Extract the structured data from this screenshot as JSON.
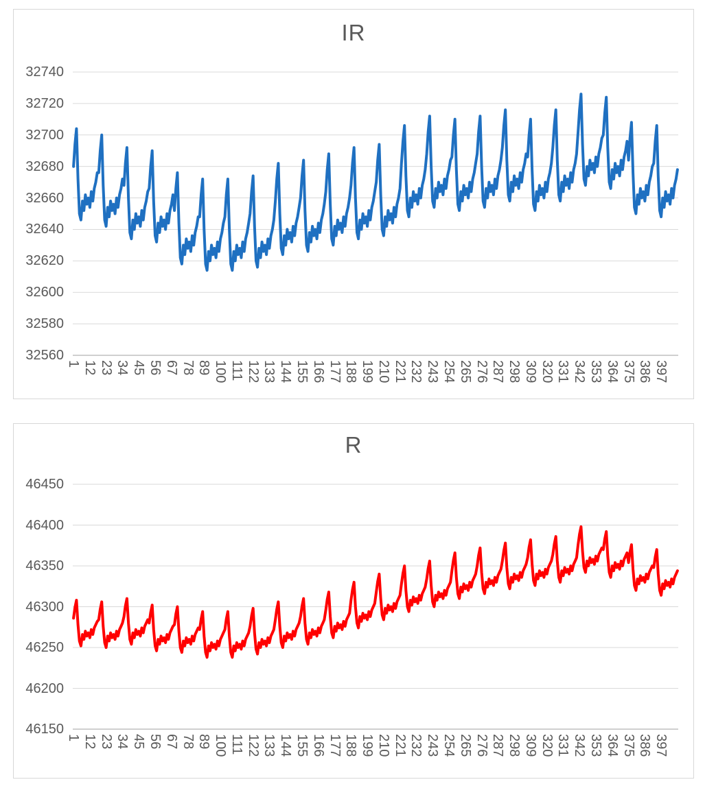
{
  "page": {
    "background": "#FFFFFF",
    "text_color": "#595959",
    "gridline_color": "#D9D9D9",
    "axis_line_color": "#BFBFBF",
    "panel_border_color": "#D7D7D7"
  },
  "chart_data": [
    {
      "type": "line",
      "title": "IR",
      "series_name": "IR",
      "line_color": "#1F70C1",
      "legend": "none",
      "grid": "horizontal",
      "ylim": [
        32560,
        32740
      ],
      "y_tick_step": 20,
      "y_tick_labels": [
        "32740",
        "32720",
        "32700",
        "32680",
        "32660",
        "32640",
        "32620",
        "32600",
        "32580",
        "32560"
      ],
      "x_tick_labels": [
        "1",
        "12",
        "23",
        "34",
        "45",
        "56",
        "67",
        "78",
        "89",
        "100",
        "111",
        "122",
        "133",
        "144",
        "155",
        "166",
        "177",
        "188",
        "199",
        "210",
        "221",
        "232",
        "243",
        "254",
        "265",
        "276",
        "287",
        "298",
        "309",
        "320",
        "331",
        "342",
        "353",
        "364",
        "375",
        "386",
        "397"
      ],
      "x_count": 408,
      "values": [
        32680,
        32694,
        32704,
        32672,
        32650,
        32646,
        32658,
        32652,
        32662,
        32656,
        32660,
        32654,
        32664,
        32658,
        32666,
        32670,
        32676,
        32676,
        32690,
        32700,
        32668,
        32646,
        32642,
        32654,
        32648,
        32658,
        32652,
        32656,
        32650,
        32660,
        32654,
        32662,
        32666,
        32672,
        32668,
        32682,
        32692,
        32660,
        32638,
        32634,
        32646,
        32640,
        32650,
        32644,
        32648,
        32642,
        32652,
        32646,
        32654,
        32658,
        32664,
        32666,
        32680,
        32690,
        32658,
        32636,
        32632,
        32644,
        32638,
        32648,
        32642,
        32646,
        32640,
        32650,
        32644,
        32652,
        32656,
        32662,
        32652,
        32666,
        32676,
        32644,
        32622,
        32618,
        32630,
        32624,
        32634,
        32628,
        32632,
        32626,
        32636,
        32630,
        32638,
        32642,
        32648,
        32648,
        32662,
        32672,
        32640,
        32618,
        32614,
        32626,
        32620,
        32630,
        32624,
        32628,
        32622,
        32632,
        32626,
        32634,
        32638,
        32644,
        32648,
        32662,
        32672,
        32640,
        32618,
        32614,
        32626,
        32620,
        32630,
        32624,
        32628,
        32622,
        32632,
        32626,
        32634,
        32638,
        32644,
        32650,
        32664,
        32674,
        32642,
        32620,
        32616,
        32628,
        32622,
        32632,
        32626,
        32630,
        32624,
        32634,
        32628,
        32636,
        32640,
        32646,
        32658,
        32672,
        32682,
        32650,
        32628,
        32624,
        32636,
        32630,
        32640,
        32634,
        32638,
        32632,
        32642,
        32636,
        32644,
        32648,
        32654,
        32660,
        32674,
        32684,
        32652,
        32630,
        32626,
        32638,
        32632,
        32642,
        32636,
        32640,
        32634,
        32644,
        32638,
        32646,
        32650,
        32656,
        32664,
        32678,
        32688,
        32656,
        32634,
        32630,
        32642,
        32636,
        32646,
        32640,
        32644,
        32638,
        32648,
        32642,
        32650,
        32654,
        32660,
        32668,
        32682,
        32692,
        32660,
        32638,
        32634,
        32646,
        32640,
        32650,
        32644,
        32648,
        32642,
        32652,
        32646,
        32654,
        32658,
        32664,
        32670,
        32684,
        32694,
        32662,
        32640,
        32636,
        32648,
        32642,
        32652,
        32646,
        32650,
        32644,
        32654,
        32648,
        32656,
        32660,
        32666,
        32682,
        32696,
        32706,
        32674,
        32652,
        32648,
        32660,
        32654,
        32664,
        32658,
        32662,
        32656,
        32666,
        32660,
        32668,
        32672,
        32678,
        32688,
        32702,
        32712,
        32680,
        32658,
        32654,
        32666,
        32660,
        32670,
        32664,
        32668,
        32662,
        32672,
        32666,
        32674,
        32678,
        32684,
        32686,
        32700,
        32710,
        32678,
        32656,
        32652,
        32664,
        32658,
        32668,
        32662,
        32666,
        32660,
        32670,
        32664,
        32672,
        32676,
        32682,
        32688,
        32702,
        32712,
        32680,
        32658,
        32654,
        32666,
        32660,
        32670,
        32664,
        32668,
        32662,
        32672,
        32666,
        32674,
        32678,
        32684,
        32692,
        32706,
        32716,
        32684,
        32662,
        32658,
        32670,
        32664,
        32674,
        32668,
        32672,
        32666,
        32676,
        32670,
        32678,
        32682,
        32688,
        32686,
        32700,
        32710,
        32678,
        32656,
        32652,
        32664,
        32658,
        32668,
        32662,
        32666,
        32660,
        32670,
        32664,
        32672,
        32676,
        32682,
        32692,
        32706,
        32716,
        32684,
        32662,
        32658,
        32670,
        32664,
        32674,
        32668,
        32672,
        32666,
        32676,
        32670,
        32678,
        32682,
        32688,
        32702,
        32716,
        32726,
        32694,
        32672,
        32668,
        32680,
        32674,
        32684,
        32678,
        32682,
        32676,
        32686,
        32680,
        32688,
        32692,
        32698,
        32700,
        32714,
        32724,
        32692,
        32670,
        32666,
        32678,
        32672,
        32682,
        32676,
        32680,
        32674,
        32684,
        32678,
        32686,
        32690,
        32696,
        32684,
        32698,
        32708,
        32676,
        32654,
        32650,
        32662,
        32656,
        32666,
        32660,
        32664,
        32658,
        32668,
        32662,
        32670,
        32674,
        32680,
        32682,
        32696,
        32706,
        32674,
        32652,
        32648,
        32660,
        32654,
        32664,
        32658,
        32662,
        32656,
        32666,
        32660,
        32668,
        32672,
        32678
      ]
    },
    {
      "type": "line",
      "title": "R",
      "series_name": "R",
      "line_color": "#FF0000",
      "legend": "none",
      "grid": "horizontal",
      "ylim": [
        46150,
        46450
      ],
      "y_tick_step": 50,
      "y_tick_labels": [
        "46450",
        "46400",
        "46350",
        "46300",
        "46250",
        "46200",
        "46150"
      ],
      "x_tick_labels": [
        "1",
        "12",
        "23",
        "34",
        "45",
        "56",
        "67",
        "78",
        "89",
        "100",
        "111",
        "122",
        "133",
        "144",
        "155",
        "166",
        "177",
        "188",
        "199",
        "210",
        "221",
        "232",
        "243",
        "254",
        "265",
        "276",
        "287",
        "298",
        "309",
        "320",
        "331",
        "342",
        "353",
        "364",
        "375",
        "386",
        "397"
      ],
      "x_count": 408,
      "values": [
        46286,
        46299,
        46308,
        46278,
        46258,
        46252,
        46266,
        46260,
        46270,
        46264,
        46268,
        46262,
        46272,
        46266,
        46274,
        46278,
        46282,
        46284,
        46297,
        46306,
        46276,
        46256,
        46250,
        46264,
        46258,
        46268,
        46262,
        46266,
        46260,
        46270,
        46264,
        46272,
        46276,
        46280,
        46288,
        46301,
        46310,
        46280,
        46260,
        46254,
        46268,
        46262,
        46272,
        46266,
        46270,
        46264,
        46274,
        46268,
        46276,
        46280,
        46284,
        46280,
        46293,
        46302,
        46272,
        46252,
        46246,
        46260,
        46254,
        46264,
        46258,
        46262,
        46256,
        46266,
        46260,
        46268,
        46272,
        46276,
        46278,
        46291,
        46300,
        46270,
        46250,
        46244,
        46258,
        46252,
        46262,
        46256,
        46260,
        46254,
        46264,
        46258,
        46266,
        46270,
        46274,
        46272,
        46285,
        46294,
        46264,
        46244,
        46238,
        46252,
        46246,
        46256,
        46250,
        46254,
        46248,
        46258,
        46252,
        46260,
        46264,
        46268,
        46272,
        46285,
        46294,
        46264,
        46244,
        46238,
        46252,
        46246,
        46256,
        46250,
        46254,
        46248,
        46258,
        46252,
        46260,
        46264,
        46268,
        46276,
        46289,
        46298,
        46268,
        46248,
        46242,
        46256,
        46250,
        46260,
        46254,
        46258,
        46252,
        46262,
        46256,
        46264,
        46268,
        46272,
        46284,
        46297,
        46306,
        46276,
        46256,
        46250,
        46264,
        46258,
        46268,
        46262,
        46266,
        46260,
        46270,
        46264,
        46272,
        46276,
        46280,
        46288,
        46301,
        46310,
        46280,
        46260,
        46254,
        46268,
        46262,
        46272,
        46266,
        46270,
        46264,
        46274,
        46268,
        46276,
        46280,
        46284,
        46296,
        46309,
        46318,
        46288,
        46268,
        46262,
        46276,
        46270,
        46280,
        46274,
        46278,
        46272,
        46282,
        46276,
        46284,
        46288,
        46292,
        46308,
        46321,
        46330,
        46300,
        46280,
        46274,
        46288,
        46282,
        46292,
        46286,
        46290,
        46284,
        46294,
        46288,
        46296,
        46300,
        46304,
        46318,
        46331,
        46340,
        46310,
        46290,
        46284,
        46298,
        46292,
        46302,
        46296,
        46300,
        46294,
        46304,
        46298,
        46306,
        46310,
        46314,
        46328,
        46341,
        46350,
        46320,
        46300,
        46294,
        46308,
        46302,
        46312,
        46306,
        46310,
        46304,
        46314,
        46308,
        46316,
        46320,
        46324,
        46334,
        46347,
        46356,
        46326,
        46306,
        46300,
        46314,
        46308,
        46318,
        46312,
        46316,
        46310,
        46320,
        46314,
        46322,
        46326,
        46330,
        46344,
        46357,
        46366,
        46336,
        46316,
        46310,
        46324,
        46318,
        46328,
        46322,
        46326,
        46320,
        46330,
        46324,
        46332,
        46336,
        46340,
        46350,
        46363,
        46372,
        46342,
        46322,
        46316,
        46330,
        46324,
        46334,
        46328,
        46332,
        46326,
        46336,
        46330,
        46338,
        46342,
        46346,
        46356,
        46369,
        46378,
        46348,
        46328,
        46322,
        46336,
        46330,
        46340,
        46334,
        46338,
        46332,
        46342,
        46336,
        46344,
        46348,
        46352,
        46360,
        46373,
        46382,
        46352,
        46332,
        46326,
        46340,
        46334,
        46344,
        46338,
        46342,
        46336,
        46346,
        46340,
        46348,
        46352,
        46356,
        46364,
        46377,
        46386,
        46356,
        46336,
        46330,
        46344,
        46338,
        46348,
        46342,
        46346,
        46340,
        46350,
        46344,
        46352,
        46356,
        46360,
        46376,
        46389,
        46398,
        46368,
        46348,
        46342,
        46356,
        46350,
        46360,
        46354,
        46358,
        46352,
        46362,
        46356,
        46364,
        46368,
        46372,
        46370,
        46383,
        46392,
        46362,
        46342,
        46336,
        46350,
        46344,
        46354,
        46348,
        46352,
        46346,
        46356,
        46350,
        46358,
        46362,
        46366,
        46354,
        46367,
        46376,
        46346,
        46326,
        46320,
        46334,
        46328,
        46338,
        46332,
        46336,
        46330,
        46340,
        46334,
        46342,
        46346,
        46350,
        46348,
        46361,
        46370,
        46340,
        46320,
        46314,
        46328,
        46322,
        46332,
        46326,
        46330,
        46324,
        46334,
        46328,
        46336,
        46340,
        46344
      ]
    }
  ]
}
